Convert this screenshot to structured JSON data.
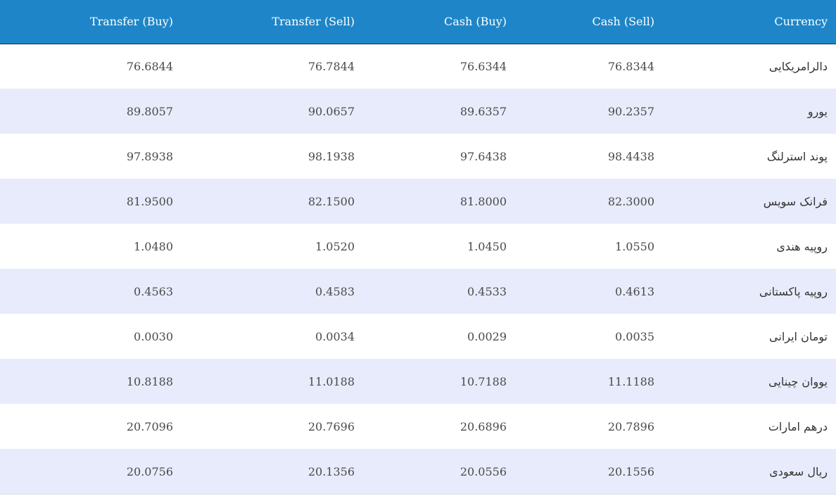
{
  "table": {
    "headers": {
      "transfer_buy": "Transfer (Buy)",
      "transfer_sell": "Transfer (Sell)",
      "cash_buy": "Cash (Buy)",
      "cash_sell": "Cash (Sell)",
      "currency": "Currency"
    },
    "rows": [
      {
        "currency": "دالرامریکایی",
        "transfer_buy": "76.6844",
        "transfer_sell": "76.7844",
        "cash_buy": "76.6344",
        "cash_sell": "76.8344"
      },
      {
        "currency": "یورو",
        "transfer_buy": "89.8057",
        "transfer_sell": "90.0657",
        "cash_buy": "89.6357",
        "cash_sell": "90.2357"
      },
      {
        "currency": "پوند استرلنگ",
        "transfer_buy": "97.8938",
        "transfer_sell": "98.1938",
        "cash_buy": "97.6438",
        "cash_sell": "98.4438"
      },
      {
        "currency": "فرانک سویس",
        "transfer_buy": "81.9500",
        "transfer_sell": "82.1500",
        "cash_buy": "81.8000",
        "cash_sell": "82.3000"
      },
      {
        "currency": "روپیه هندی",
        "transfer_buy": "1.0480",
        "transfer_sell": "1.0520",
        "cash_buy": "1.0450",
        "cash_sell": "1.0550"
      },
      {
        "currency": "روپیه پاکستانی",
        "transfer_buy": "0.4563",
        "transfer_sell": "0.4583",
        "cash_buy": "0.4533",
        "cash_sell": "0.4613"
      },
      {
        "currency": "تومان ایرانی",
        "transfer_buy": "0.0030",
        "transfer_sell": "0.0034",
        "cash_buy": "0.0029",
        "cash_sell": "0.0035"
      },
      {
        "currency": "یووان چینایی",
        "transfer_buy": "10.8188",
        "transfer_sell": "11.0188",
        "cash_buy": "10.7188",
        "cash_sell": "11.1188"
      },
      {
        "currency": "درهم امارات",
        "transfer_buy": "20.7096",
        "transfer_sell": "20.7696",
        "cash_buy": "20.6896",
        "cash_sell": "20.7896"
      },
      {
        "currency": "ریال سعودی",
        "transfer_buy": "20.0756",
        "transfer_sell": "20.1356",
        "cash_buy": "20.0556",
        "cash_sell": "20.1556"
      }
    ]
  },
  "colors": {
    "header_bg": "#1e86c8",
    "row_alt_bg": "#e8ebfb",
    "text": "#4a4a4a"
  }
}
